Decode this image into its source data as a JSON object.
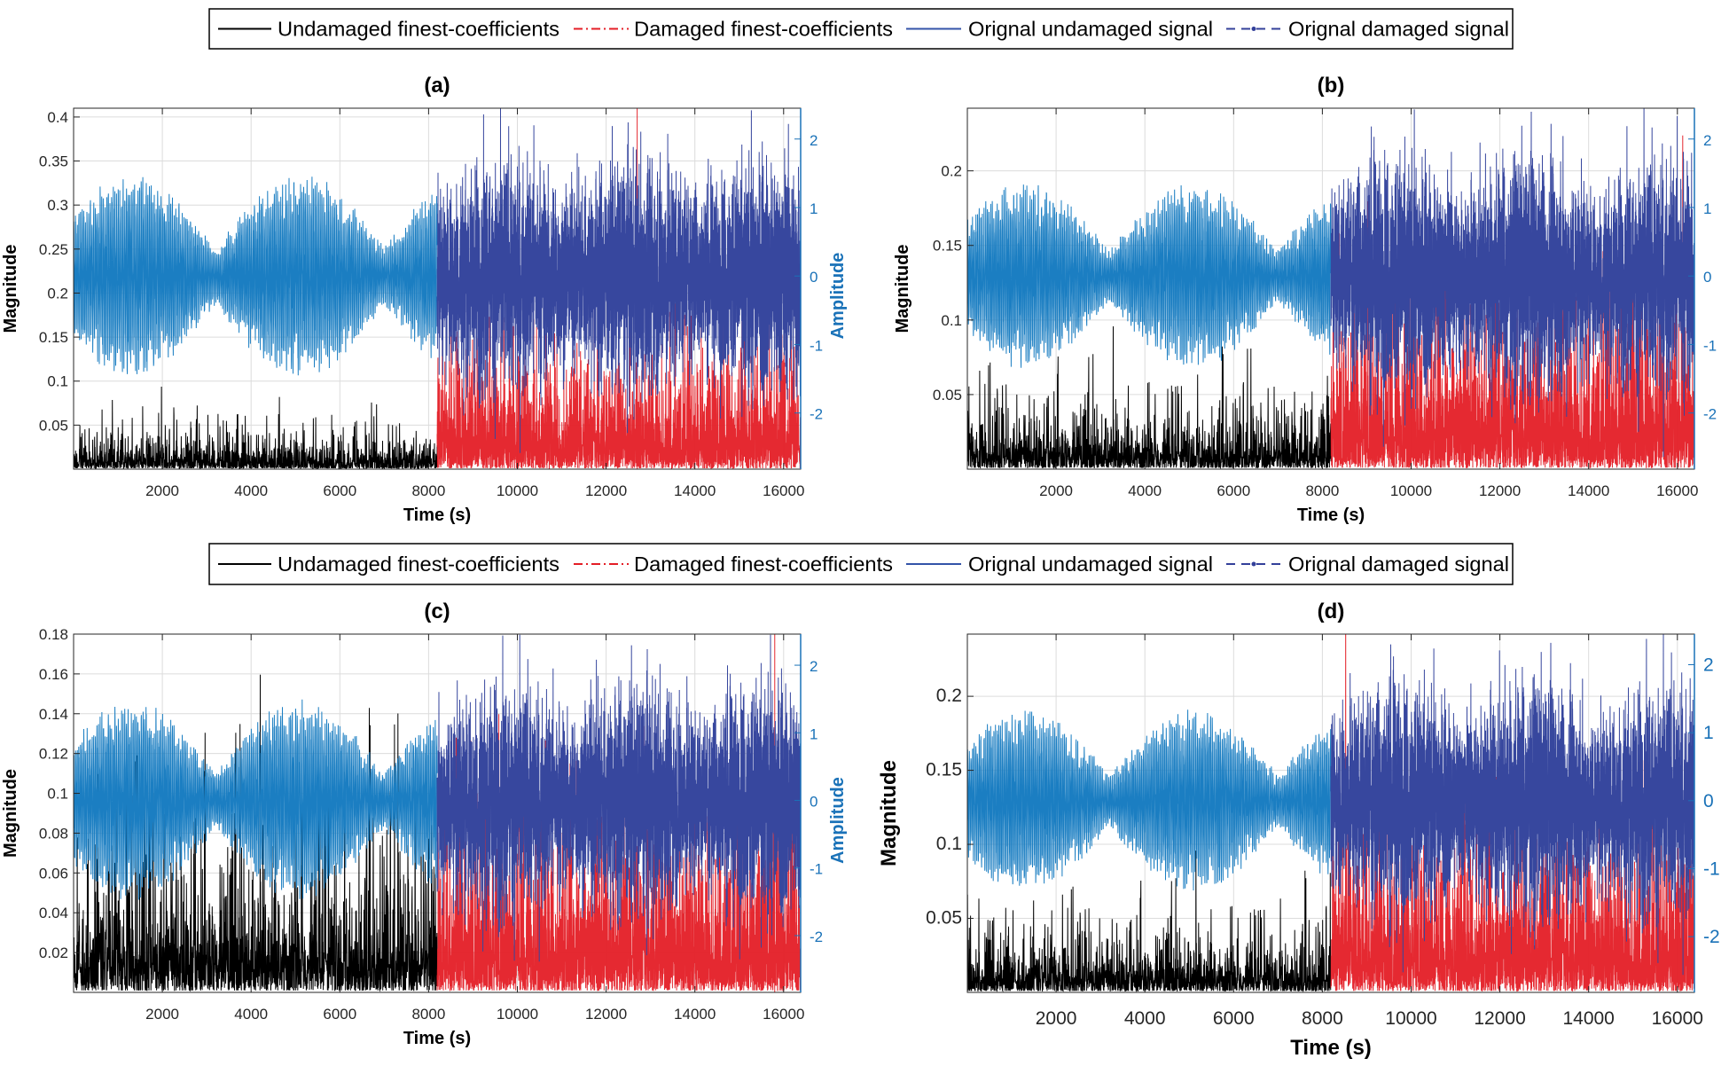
{
  "legend": {
    "entries": [
      {
        "label": "Undamaged finest-coefficients",
        "color": "#000000",
        "style": "solid"
      },
      {
        "label": "Damaged finest-coefficients",
        "color": "#e41e26",
        "style": "dash-dot"
      },
      {
        "label": "Orignal undamaged signal",
        "color": "#3353a8",
        "style": "solid"
      },
      {
        "label": "Orignal damaged signal",
        "color": "#33409a",
        "style": "dashed-with-markers"
      }
    ]
  },
  "colors": {
    "undamaged_coeff": "#000000",
    "damaged_coeff": "#e41e26",
    "undamaged_signal": "#1b7ec2",
    "damaged_signal": "#37479e",
    "right_axis": "#1a72b8",
    "grid": "#dcdcdc"
  },
  "chart_data": [
    {
      "type": "line",
      "title": "(a)",
      "xlabel": "Time (s)",
      "ylabel": "Magnitude",
      "y2label": "Amplitude",
      "xlim": [
        0,
        16384
      ],
      "ylim": [
        0,
        0.41
      ],
      "y2lim": [
        -2.82,
        2.45
      ],
      "xticks": [
        "2000",
        "4000",
        "6000",
        "8000",
        "10000",
        "12000",
        "14000",
        "16000"
      ],
      "yticks": [
        "0.05",
        "0.1",
        "0.15",
        "0.2",
        "0.25",
        "0.3",
        "0.35",
        "0.4"
      ],
      "y2ticks": [
        "-2",
        "-1",
        "0",
        "1",
        "2"
      ],
      "grid": true,
      "series": [
        {
          "name": "Undamaged finest-coefficients",
          "axis": "left",
          "time_range": [
            0,
            8192
          ],
          "typical_peak": 0.05,
          "max": 0.11
        },
        {
          "name": "Damaged finest-coefficients",
          "axis": "left",
          "time_range": [
            8192,
            16384
          ],
          "typical_peak": 0.12,
          "max": 0.41
        },
        {
          "name": "Orignal undamaged signal",
          "axis": "right",
          "time_range": [
            0,
            8192
          ],
          "min": -1.9,
          "max": 1.5
        },
        {
          "name": "Orignal damaged signal",
          "axis": "right",
          "time_range": [
            8192,
            16384
          ],
          "min": -2.7,
          "max": 2.45
        }
      ]
    },
    {
      "type": "line",
      "title": "(b)",
      "xlabel": "Time (s)",
      "ylabel": "Magnitude",
      "y2label": "",
      "xlim": [
        0,
        16384
      ],
      "ylim": [
        0,
        0.242
      ],
      "y2lim": [
        -2.82,
        2.45
      ],
      "xticks": [
        "2000",
        "4000",
        "6000",
        "8000",
        "10000",
        "12000",
        "14000",
        "16000"
      ],
      "yticks": [
        "0.05",
        "0.1",
        "0.15",
        "0.2"
      ],
      "y2ticks": [
        "-2",
        "-1",
        "0",
        "1",
        "2"
      ],
      "grid": true,
      "series": [
        {
          "name": "Undamaged finest-coefficients",
          "axis": "left",
          "time_range": [
            0,
            8192
          ],
          "typical_peak": 0.04,
          "max": 0.08
        },
        {
          "name": "Damaged finest-coefficients",
          "axis": "left",
          "time_range": [
            8192,
            16384
          ],
          "typical_peak": 0.09,
          "max": 0.242
        },
        {
          "name": "Orignal undamaged signal",
          "axis": "right",
          "time_range": [
            0,
            8192
          ],
          "min": -1.8,
          "max": 1.6
        },
        {
          "name": "Orignal damaged signal",
          "axis": "right",
          "time_range": [
            8192,
            16384
          ],
          "min": -2.7,
          "max": 2.45
        }
      ]
    },
    {
      "type": "line",
      "title": "(c)",
      "xlabel": "Time (s)",
      "ylabel": "Magnitude",
      "y2label": "Amplitude",
      "xlim": [
        0,
        16384
      ],
      "ylim": [
        0,
        0.18
      ],
      "y2lim": [
        -2.84,
        2.46
      ],
      "xticks": [
        "2000",
        "4000",
        "6000",
        "8000",
        "10000",
        "12000",
        "14000",
        "16000"
      ],
      "yticks": [
        "0.02",
        "0.04",
        "0.06",
        "0.08",
        "0.1",
        "0.12",
        "0.14",
        "0.16",
        "0.18"
      ],
      "y2ticks": [
        "-2",
        "-1",
        "0",
        "1",
        "2"
      ],
      "grid": true,
      "series": [
        {
          "name": "Undamaged finest-coefficients",
          "axis": "left",
          "time_range": [
            0,
            8192
          ],
          "typical_peak": 0.06,
          "max": 0.18
        },
        {
          "name": "Damaged finest-coefficients",
          "axis": "left",
          "time_range": [
            8192,
            16384
          ],
          "typical_peak": 0.06,
          "max": 0.18
        },
        {
          "name": "Orignal undamaged signal",
          "axis": "right",
          "time_range": [
            0,
            8192
          ],
          "min": -1.9,
          "max": 1.6
        },
        {
          "name": "Orignal damaged signal",
          "axis": "right",
          "time_range": [
            8192,
            16384
          ],
          "min": -2.7,
          "max": 2.46
        }
      ]
    },
    {
      "type": "line",
      "title": "(d)",
      "xlabel": "Time (s)",
      "ylabel": "Magnitude",
      "y2label": "",
      "xlim": [
        0,
        16384
      ],
      "ylim": [
        0,
        0.242
      ],
      "y2lim": [
        -2.82,
        2.45
      ],
      "xticks": [
        "2000",
        "4000",
        "6000",
        "8000",
        "10000",
        "12000",
        "14000",
        "16000"
      ],
      "yticks": [
        "0.05",
        "0.1",
        "0.15",
        "0.2"
      ],
      "y2ticks": [
        "-2",
        "-1",
        "0",
        "1",
        "2"
      ],
      "grid": true,
      "series": [
        {
          "name": "Undamaged finest-coefficients",
          "axis": "left",
          "time_range": [
            0,
            8192
          ],
          "typical_peak": 0.04,
          "max": 0.08
        },
        {
          "name": "Damaged finest-coefficients",
          "axis": "left",
          "time_range": [
            8192,
            16384
          ],
          "typical_peak": 0.09,
          "max": 0.242
        },
        {
          "name": "Orignal undamaged signal",
          "axis": "right",
          "time_range": [
            0,
            8192
          ],
          "min": -1.8,
          "max": 1.6
        },
        {
          "name": "Orignal damaged signal",
          "axis": "right",
          "time_range": [
            8192,
            16384
          ],
          "min": -2.7,
          "max": 2.45
        }
      ]
    }
  ]
}
